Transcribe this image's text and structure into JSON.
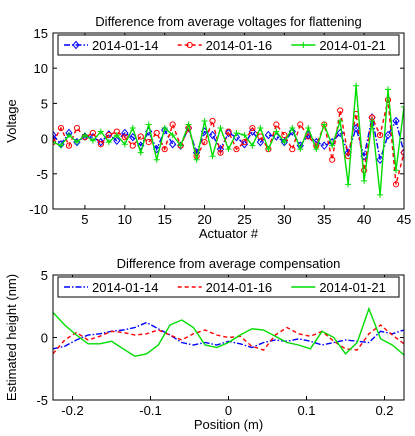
{
  "chart_data": [
    {
      "type": "line",
      "title": "Difference from average voltages for flattening",
      "xlabel": "Actuator #",
      "ylabel": "Voltage",
      "xlim": [
        1,
        45
      ],
      "ylim": [
        -10,
        15
      ],
      "xticks": [
        5,
        10,
        15,
        20,
        25,
        30,
        35,
        40,
        45
      ],
      "yticks": [
        -10,
        -5,
        0,
        5,
        10,
        15
      ],
      "grid": false,
      "legend": "top",
      "x": [
        1,
        2,
        3,
        4,
        5,
        6,
        7,
        8,
        9,
        10,
        11,
        12,
        13,
        14,
        15,
        16,
        17,
        18,
        19,
        20,
        21,
        22,
        23,
        24,
        25,
        26,
        27,
        28,
        29,
        30,
        31,
        32,
        33,
        34,
        35,
        36,
        37,
        38,
        39,
        40,
        41,
        42,
        43,
        44,
        45
      ],
      "series": [
        {
          "name": "2014-01-14",
          "color": "#0000ff",
          "dash": "6,2,1.5,2",
          "marker": "diamond",
          "values": [
            0.5,
            -0.8,
            0.8,
            -0.5,
            0.3,
            0.2,
            -0.5,
            0.6,
            -0.3,
            0.8,
            0.2,
            -1.0,
            1.0,
            -1.5,
            1.2,
            -0.8,
            -1.0,
            1.5,
            -2.0,
            1.0,
            0.5,
            -1.5,
            0.8,
            0.2,
            -0.8,
            1.0,
            -0.5,
            0.5,
            0.3,
            -0.5,
            1.0,
            -1.0,
            0.5,
            -0.5,
            -1.0,
            -0.5,
            0.8,
            -2.0,
            1.5,
            -2.5,
            3.0,
            -3.0,
            0.5,
            2.5,
            -2.0
          ]
        },
        {
          "name": "2014-01-16",
          "color": "#ff0000",
          "dash": "4,3",
          "marker": "circle",
          "values": [
            -0.5,
            1.5,
            -1.0,
            1.5,
            0.2,
            0.8,
            -0.8,
            0.5,
            1.0,
            0.2,
            -1.0,
            0.3,
            -0.5,
            0.8,
            -1.5,
            2.0,
            -1.0,
            1.5,
            -2.5,
            -0.5,
            2.5,
            -2.0,
            1.0,
            -1.5,
            -0.5,
            1.5,
            0.3,
            -1.5,
            2.0,
            0.5,
            -1.5,
            2.0,
            0.3,
            -1.0,
            2.0,
            -3.0,
            4.0,
            -2.5,
            3.5,
            -4.5,
            3.0,
            0.5,
            5.5,
            -6.5,
            -2.0
          ]
        },
        {
          "name": "2014-01-21",
          "color": "#00dd00",
          "dash": "",
          "marker": "plus",
          "values": [
            -0.5,
            -1.0,
            0.5,
            -0.5,
            0.5,
            -0.3,
            1.0,
            -0.5,
            0.5,
            -0.8,
            1.5,
            -2.0,
            2.0,
            -3.0,
            1.5,
            0.5,
            -1.0,
            2.0,
            -3.0,
            2.5,
            -2.5,
            1.5,
            -1.5,
            0.8,
            0.5,
            -1.0,
            1.5,
            -1.5,
            1.0,
            -0.5,
            1.5,
            -1.5,
            1.5,
            -1.5,
            2.0,
            -1.0,
            2.5,
            -6.5,
            7.5,
            -6.0,
            2.5,
            -8.0,
            7.0,
            -4.5,
            4.5
          ]
        }
      ]
    },
    {
      "type": "line",
      "title": "Difference from average compensation",
      "xlabel": "Position (m)",
      "ylabel": "Estimated height (nm)",
      "xlim": [
        -0.225,
        0.225
      ],
      "ylim": [
        -5,
        5
      ],
      "xticks": [
        -0.2,
        -0.1,
        0,
        0.1,
        0.2
      ],
      "yticks": [
        -5,
        0,
        5
      ],
      "grid": false,
      "legend": "top",
      "x": [
        -0.225,
        -0.21,
        -0.195,
        -0.18,
        -0.165,
        -0.15,
        -0.135,
        -0.12,
        -0.105,
        -0.09,
        -0.075,
        -0.06,
        -0.045,
        -0.03,
        -0.015,
        0,
        0.015,
        0.03,
        0.045,
        0.06,
        0.075,
        0.09,
        0.105,
        0.12,
        0.135,
        0.15,
        0.165,
        0.18,
        0.195,
        0.21,
        0.225
      ],
      "series": [
        {
          "name": "2014-01-14",
          "color": "#0000ff",
          "dash": "6,2,1.5,2",
          "values": [
            -0.9,
            -0.7,
            -0.2,
            0.2,
            0.3,
            0.5,
            0.6,
            0.8,
            1.2,
            0.7,
            0.2,
            -0.4,
            -0.6,
            -0.4,
            -0.6,
            -0.3,
            -0.5,
            -0.8,
            -0.4,
            -0.2,
            -0.3,
            -0.1,
            -0.3,
            -0.6,
            -0.4,
            -0.2,
            -0.3,
            -0.4,
            0.5,
            0.3,
            0.6
          ]
        },
        {
          "name": "2014-01-16",
          "color": "#ff0000",
          "dash": "4,3",
          "values": [
            -1.3,
            -0.2,
            0.4,
            -0.2,
            0.1,
            0.5,
            0.4,
            0.2,
            0.3,
            0.6,
            0.2,
            -0.2,
            0.3,
            0.6,
            0.2,
            0.0,
            0.1,
            -0.7,
            -1.0,
            0.2,
            0.8,
            0.3,
            0.1,
            0.5,
            -0.3,
            -0.9,
            -1.0,
            0.3,
            1.0,
            0.2,
            -0.5
          ]
        },
        {
          "name": "2014-01-21",
          "color": "#00dd00",
          "dash": "",
          "values": [
            2.0,
            1.0,
            0.2,
            -0.5,
            -0.5,
            -0.3,
            -0.9,
            -1.5,
            -1.3,
            -0.6,
            1.0,
            1.4,
            0.8,
            -0.6,
            -0.8,
            -0.4,
            0.2,
            0.7,
            0.6,
            0.1,
            -0.4,
            -0.6,
            -0.9,
            0.5,
            0.0,
            -1.3,
            -0.4,
            2.3,
            -0.1,
            -0.6,
            -1.4
          ]
        }
      ]
    }
  ]
}
